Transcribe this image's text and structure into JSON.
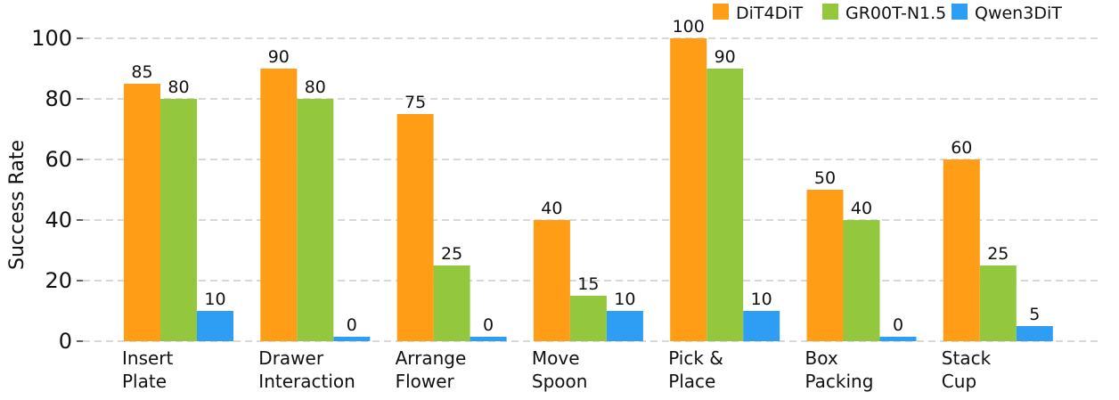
{
  "chart_data": {
    "type": "bar",
    "title": "",
    "xlabel": "",
    "ylabel": "Success Rate",
    "ylim": [
      0,
      100
    ],
    "yticks": [
      0,
      20,
      40,
      60,
      80,
      100
    ],
    "grid": true,
    "legend_position": "top-right",
    "categories": [
      [
        "Insert",
        "Plate"
      ],
      [
        "Drawer",
        "Interaction"
      ],
      [
        "Arrange",
        "Flower"
      ],
      [
        "Move",
        "Spoon"
      ],
      [
        "Pick &",
        "Place"
      ],
      [
        "Box",
        "Packing"
      ],
      [
        "Stack",
        "Cup"
      ]
    ],
    "series": [
      {
        "name": "DiT4DiT",
        "color": "#ff9e16",
        "values": [
          85,
          90,
          75,
          40,
          100,
          50,
          60
        ]
      },
      {
        "name": "GR00T-N1.5",
        "color": "#93c83e",
        "values": [
          80,
          80,
          25,
          15,
          90,
          40,
          25
        ]
      },
      {
        "name": "Qwen3DiT",
        "color": "#2e9ef4",
        "values": [
          10,
          0,
          0,
          10,
          10,
          0,
          5
        ]
      }
    ]
  }
}
